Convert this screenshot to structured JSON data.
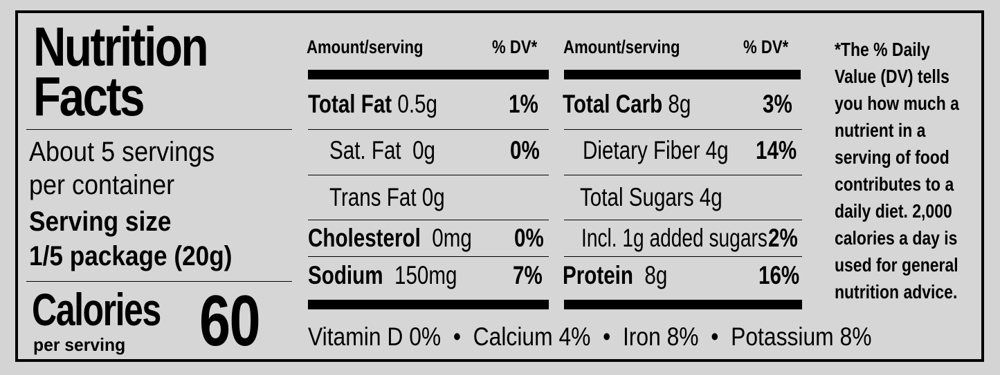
{
  "header": {
    "title_line1": "Nutrition",
    "title_line2": "Facts",
    "servings_line1": "About 5 servings",
    "servings_line2": "per container",
    "serving_size_label": "Serving size",
    "serving_size_value": "1/5 package (20g)",
    "calories_label": "Calories",
    "calories_sub": "per serving",
    "calories_value": "60"
  },
  "columns": {
    "amount_header": "Amount/serving",
    "dv_header": "% DV*"
  },
  "left_rows": [
    {
      "name": "Total Fat",
      "amount": "0.5g",
      "dv": "1%"
    },
    {
      "name": "Sat. Fat",
      "amount": "0g",
      "dv": "0%"
    },
    {
      "name": "Trans Fat",
      "amount": "0g",
      "dv": ""
    },
    {
      "name": "Cholesterol",
      "amount": "0mg",
      "dv": "0%"
    },
    {
      "name": "Sodium",
      "amount": "150mg",
      "dv": "7%"
    }
  ],
  "right_rows": [
    {
      "name": "Total Carb",
      "amount": "8g",
      "dv": "3%"
    },
    {
      "name": "Dietary Fiber",
      "amount": "4g",
      "dv": "14%"
    },
    {
      "name": "Total Sugars",
      "amount": "4g",
      "dv": ""
    },
    {
      "name": "Incl. 1g added sugars",
      "amount": "",
      "dv": "2%"
    },
    {
      "name": "Protein",
      "amount": "8g",
      "dv": "16%"
    }
  ],
  "vitamins": "Vitamin D 0%  •  Calcium 4%  •  Iron 8%  •  Potassium 8%",
  "footnote": "*The % Daily Value (DV) tells you how much a nutrient in a serving of food contributes to a daily diet. 2,000 calories a day is used for general nutrition advice."
}
